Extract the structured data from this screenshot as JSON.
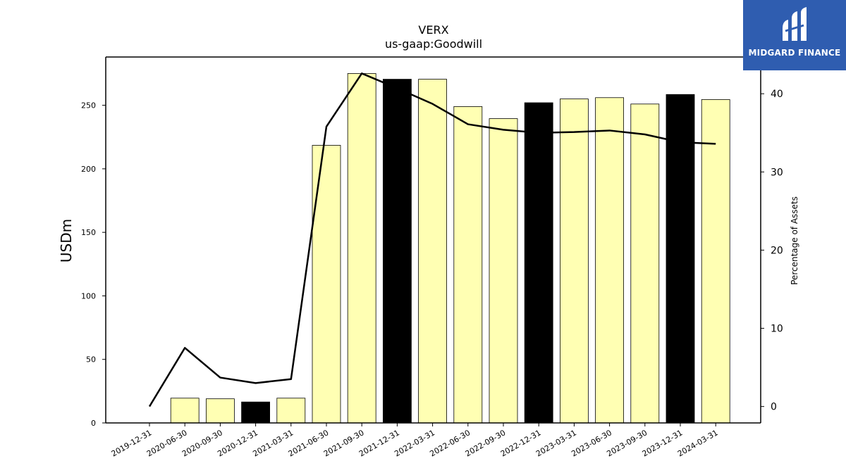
{
  "chart_data": {
    "type": "bar",
    "title": "VERX",
    "subtitle": "us-gaap:Goodwill",
    "ylabel": "USDm",
    "y2label": "Percentage of Assets",
    "ylim": [
      0,
      288
    ],
    "y2lim": [
      -2.1,
      44.7
    ],
    "yticks": [
      0,
      50,
      100,
      150,
      200,
      250
    ],
    "y2ticks": [
      0,
      10,
      20,
      30,
      40
    ],
    "categories": [
      "2019-12-31",
      "2020-06-30",
      "2020-09-30",
      "2020-12-31",
      "2021-03-31",
      "2021-06-30",
      "2021-09-30",
      "2021-12-31",
      "2022-03-31",
      "2022-06-30",
      "2022-09-30",
      "2022-12-31",
      "2023-03-31",
      "2023-06-30",
      "2023-09-30",
      "2023-12-31",
      "2024-03-31"
    ],
    "bar_values": [
      0,
      19.5,
      19.0,
      16.5,
      19.5,
      218.5,
      275.0,
      270.5,
      270.5,
      249.0,
      239.5,
      252.0,
      255.0,
      256.0,
      251.0,
      258.5,
      254.5
    ],
    "bar_colors": [
      "#ffffb3",
      "#ffffb3",
      "#ffffb3",
      "#000000",
      "#ffffb3",
      "#ffffb3",
      "#ffffb3",
      "#000000",
      "#ffffb3",
      "#ffffb3",
      "#ffffb3",
      "#000000",
      "#ffffb3",
      "#ffffb3",
      "#ffffb3",
      "#000000",
      "#ffffb3"
    ],
    "line_values": [
      0.0,
      7.5,
      3.7,
      3.0,
      3.5,
      35.8,
      42.6,
      40.7,
      38.7,
      36.1,
      35.4,
      35.0,
      35.1,
      35.3,
      34.8,
      33.8,
      33.6
    ],
    "line_color": "#000000",
    "legend": "none",
    "grid": false
  },
  "logo": {
    "text": "MIDGARD FINANCE",
    "color": "#2f5db0"
  }
}
